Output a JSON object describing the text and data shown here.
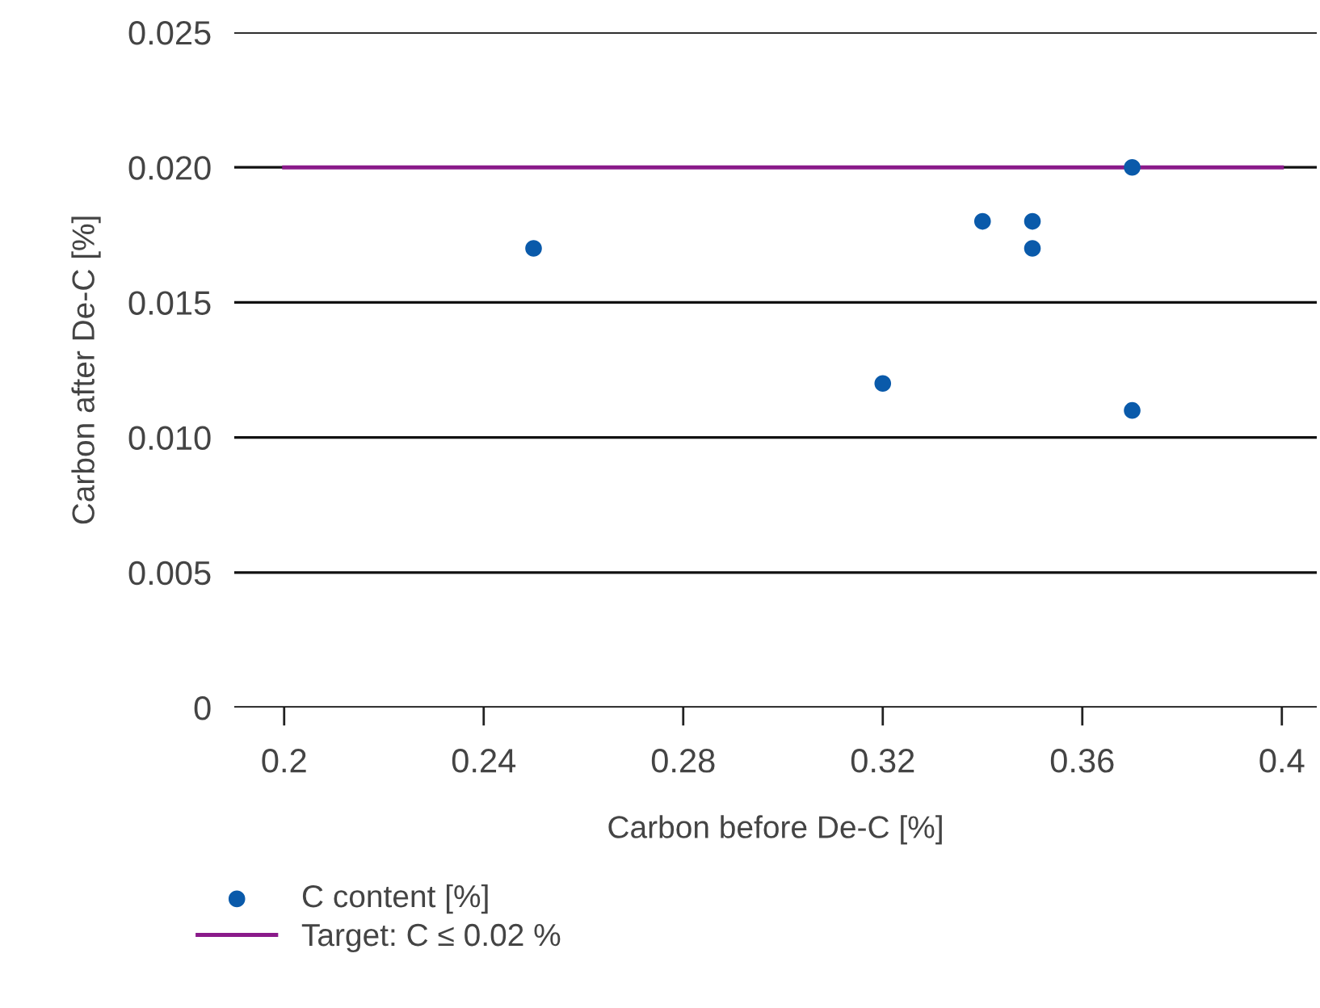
{
  "chart_data": {
    "type": "scatter",
    "xlabel": "Carbon before De-C [%]",
    "ylabel": "Carbon after De-C [%]",
    "xlim": [
      0.19,
      0.407
    ],
    "ylim": [
      0,
      0.025
    ],
    "xticks": [
      0.2,
      0.24,
      0.28,
      0.32,
      0.36,
      0.4
    ],
    "yticks": [
      0,
      0.005,
      {
        "value": 0.01,
        "label": "0.010"
      },
      0.015,
      {
        "value": 0.02,
        "label": "0.020"
      },
      0.025
    ],
    "grid": "y",
    "legend": "bottom left",
    "series": [
      {
        "name": "C content [%]",
        "marker": "circle",
        "color": "#0a5aaa",
        "x": [
          0.25,
          0.32,
          0.34,
          0.35,
          0.35,
          0.37,
          0.37
        ],
        "values": [
          0.017,
          0.012,
          0.018,
          0.018,
          0.017,
          0.02,
          0.011
        ]
      },
      {
        "name": "Target: C ≤ 0.02 %",
        "type": "line",
        "color": "#8a1a8a",
        "x": [
          0.2,
          0.4
        ],
        "values": [
          0.02,
          0.02
        ]
      }
    ]
  }
}
